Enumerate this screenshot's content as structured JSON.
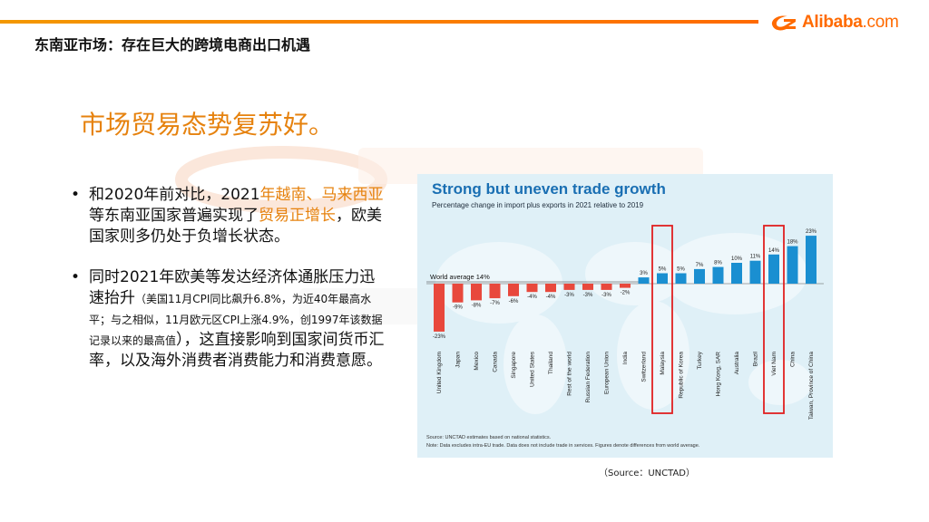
{
  "header": {
    "title": "东南亚市场：存在巨大的跨境电商出口机遇",
    "logo_text": "Alibaba",
    "logo_suffix": ".com",
    "accent_color": "#ff6a00"
  },
  "headline": "市场贸易态势复苏好。",
  "bullets": [
    {
      "p1": "和2020年前对比，2021",
      "p2": "年越南、马来西亚",
      "p3": "等东南亚国家普遍实现了",
      "p4": "贸易正增长",
      "p5": "，欧美国家则多仍处于负增长状态。"
    },
    {
      "p1": "同时2021年欧美等发达经济体通胀压力迅速抬升",
      "p2": "（美国11月CPI同比飙升6.8%，为近40年最高水平；与之相似，11月欧元区CPI上涨4.9%，创1997年该数据记录以来的最高值",
      "p3": "），这直接影响到国家间货币汇率，以及海外消费者消费能力和消费意愿。"
    }
  ],
  "source": "（Source：UNCTAD）",
  "chart_data": {
    "type": "bar",
    "title": "Strong but uneven trade growth",
    "subtitle": "Percentage change in import plus exports in 2021 relative to 2019",
    "average_label": "World average 14%",
    "average_value": 14,
    "categories": [
      "United Kingdom",
      "Japan",
      "Mexico",
      "Canada",
      "Singapore",
      "United States",
      "Thailand",
      "Rest of the world",
      "Russian Federation",
      "European Union",
      "India",
      "Switzerland",
      "Malaysia",
      "Republic of Korea",
      "Turkey",
      "Hong Kong, SAR",
      "Australia",
      "Brazil",
      "Viet Nam",
      "China",
      "Taiwan, Province of China"
    ],
    "values": [
      -23,
      -9,
      -8,
      -7,
      -6,
      -4,
      -4,
      -3,
      -3,
      -3,
      -2,
      3,
      5,
      5,
      7,
      8,
      10,
      11,
      14,
      18,
      23
    ],
    "value_labels": [
      "-23%",
      "-9%",
      "-8%",
      "-7%",
      "-6%",
      "-4%",
      "-4%",
      "-3%",
      "-3%",
      "-3%",
      "-2%",
      "3%",
      "5%",
      "5%",
      "7%",
      "8%",
      "10%",
      "11%",
      "14%",
      "18%",
      "23%"
    ],
    "highlighted": [
      "Malaysia",
      "Viet Nam"
    ],
    "ylim": [
      -23,
      23
    ],
    "source_note": "Source: UNCTAD estimates based on national statistics.",
    "note": "Note: Data excludes intra-EU trade. Data does not include trade in services. Figures denote differences from world average.",
    "colors": {
      "negative": "#e8483c",
      "positive": "#1a8fd1",
      "title": "#1a6fb3",
      "highlight": "#e02020"
    }
  }
}
